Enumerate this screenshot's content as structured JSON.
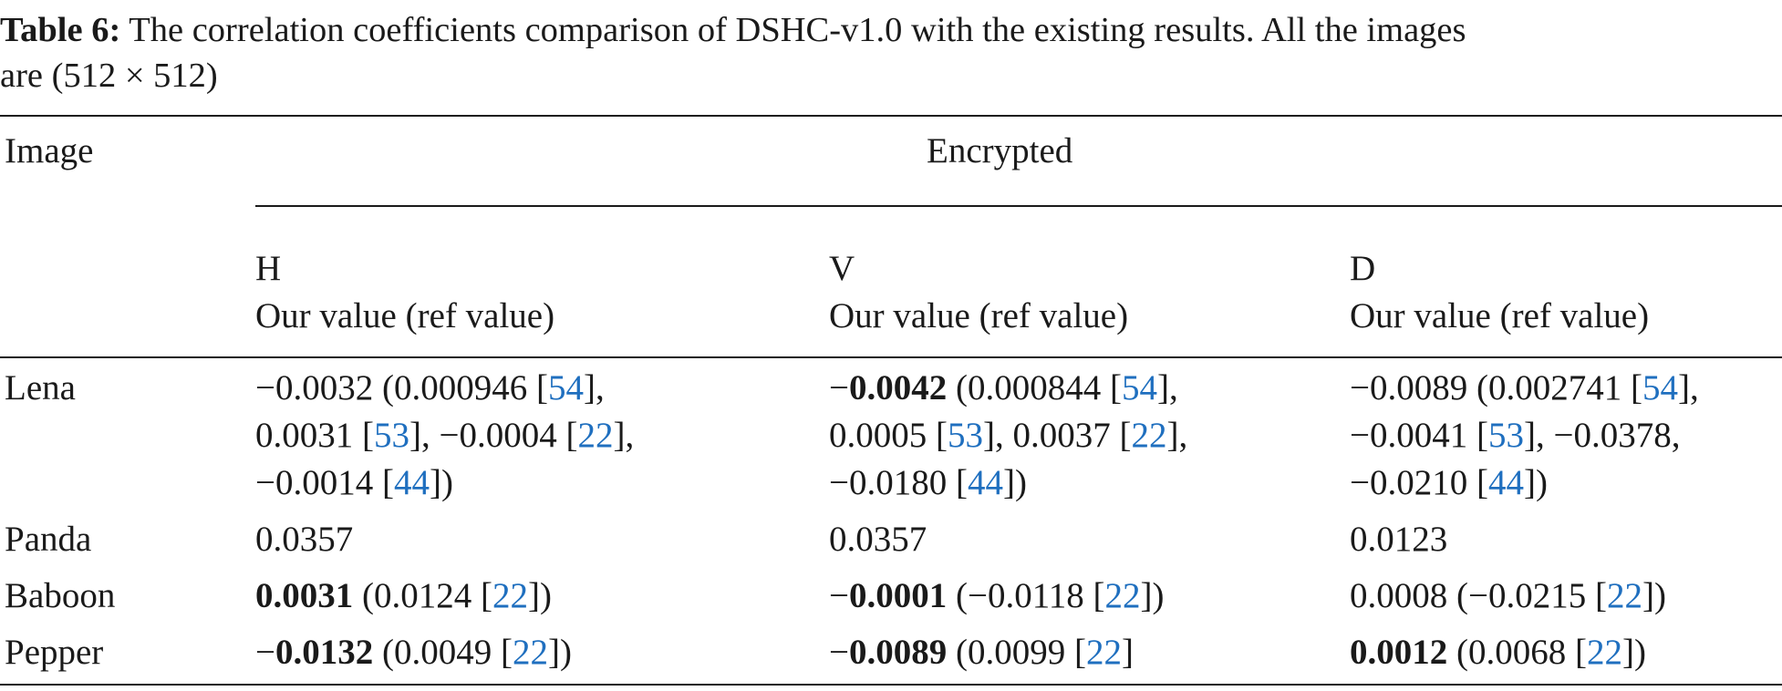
{
  "caption": {
    "label": "Table 6:",
    "line1": "The correlation coefficients comparison of DSHC-v1.0 with the existing results. All the images",
    "line2": "are (512 × 512)"
  },
  "header": {
    "image": "Image",
    "encrypted": "Encrypted",
    "columns": [
      {
        "key": "H",
        "sub": "Our value (ref value)"
      },
      {
        "key": "V",
        "sub": "Our value (ref value)"
      },
      {
        "key": "D",
        "sub": "Our value (ref value)"
      }
    ]
  },
  "rows": [
    {
      "image": "Lena",
      "cells": [
        [
          [
            {
              "t": "−0.0032 (0.000946 ["
            },
            {
              "t": "54",
              "ref": true
            },
            {
              "t": "],"
            }
          ],
          [
            {
              "t": "0.0031 ["
            },
            {
              "t": "53",
              "ref": true
            },
            {
              "t": "], −0.0004 ["
            },
            {
              "t": "22",
              "ref": true
            },
            {
              "t": "],"
            }
          ],
          [
            {
              "t": "−0.0014 ["
            },
            {
              "t": "44",
              "ref": true
            },
            {
              "t": "])"
            }
          ]
        ],
        [
          [
            {
              "t": "−"
            },
            {
              "t": "0.0042",
              "bold": true
            },
            {
              "t": " (0.000844 ["
            },
            {
              "t": "54",
              "ref": true
            },
            {
              "t": "],"
            }
          ],
          [
            {
              "t": "0.0005 ["
            },
            {
              "t": "53",
              "ref": true
            },
            {
              "t": "], 0.0037 ["
            },
            {
              "t": "22",
              "ref": true
            },
            {
              "t": "],"
            }
          ],
          [
            {
              "t": "−0.0180 ["
            },
            {
              "t": "44",
              "ref": true
            },
            {
              "t": "])"
            }
          ]
        ],
        [
          [
            {
              "t": "−0.0089 (0.002741 ["
            },
            {
              "t": "54",
              "ref": true
            },
            {
              "t": "],"
            }
          ],
          [
            {
              "t": "−0.0041 ["
            },
            {
              "t": "53",
              "ref": true
            },
            {
              "t": "], −0.0378,"
            }
          ],
          [
            {
              "t": "−0.0210 ["
            },
            {
              "t": "44",
              "ref": true
            },
            {
              "t": "])"
            }
          ]
        ]
      ]
    },
    {
      "image": "Panda",
      "cells": [
        [
          [
            {
              "t": "0.0357"
            }
          ]
        ],
        [
          [
            {
              "t": "0.0357"
            }
          ]
        ],
        [
          [
            {
              "t": "0.0123"
            }
          ]
        ]
      ]
    },
    {
      "image": "Baboon",
      "cells": [
        [
          [
            {
              "t": "0.0031",
              "bold": true
            },
            {
              "t": " (0.0124 ["
            },
            {
              "t": "22",
              "ref": true
            },
            {
              "t": "])"
            }
          ]
        ],
        [
          [
            {
              "t": "−"
            },
            {
              "t": "0.0001",
              "bold": true
            },
            {
              "t": " (−0.0118 ["
            },
            {
              "t": "22",
              "ref": true
            },
            {
              "t": "])"
            }
          ]
        ],
        [
          [
            {
              "t": "0.0008 (−0.0215 ["
            },
            {
              "t": "22",
              "ref": true
            },
            {
              "t": "])"
            }
          ]
        ]
      ]
    },
    {
      "image": "Pepper",
      "cells": [
        [
          [
            {
              "t": "−"
            },
            {
              "t": "0.0132",
              "bold": true
            },
            {
              "t": " (0.0049 ["
            },
            {
              "t": "22",
              "ref": true
            },
            {
              "t": "])"
            }
          ]
        ],
        [
          [
            {
              "t": "−"
            },
            {
              "t": "0.0089",
              "bold": true
            },
            {
              "t": " (0.0099 ["
            },
            {
              "t": "22",
              "ref": true
            },
            {
              "t": "]"
            }
          ]
        ],
        [
          [
            {
              "t": "0.0012",
              "bold": true
            },
            {
              "t": " (0.0068 ["
            },
            {
              "t": "22",
              "ref": true
            },
            {
              "t": "])"
            }
          ]
        ]
      ]
    }
  ]
}
